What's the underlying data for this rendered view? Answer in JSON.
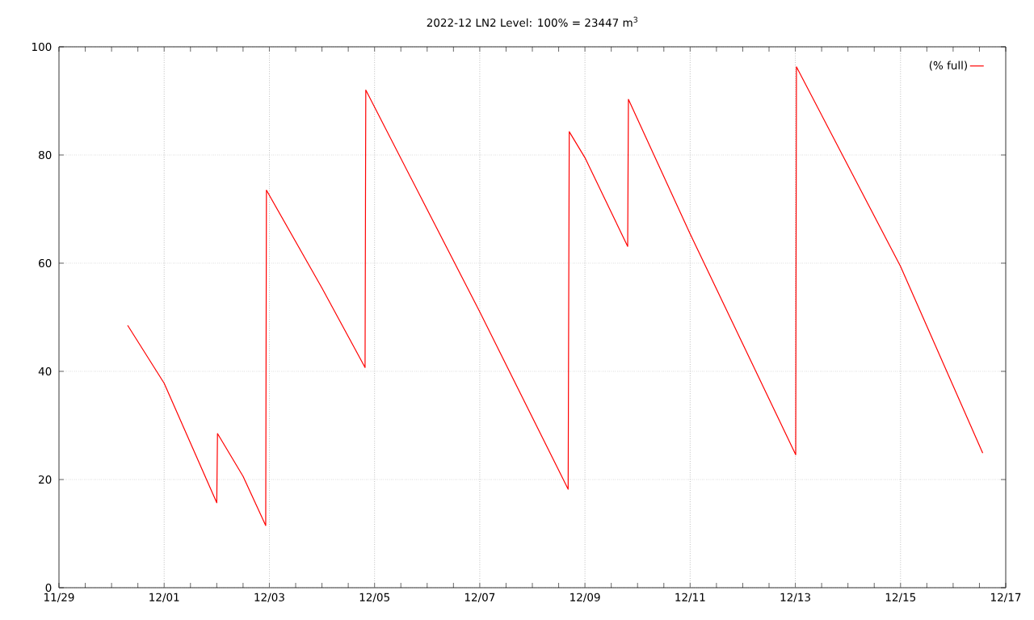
{
  "chart_data": {
    "type": "line",
    "title": "2022-12 LN2 Level: 100% = 23447 m$^{3}$",
    "x": [
      "2022-11-30T07:20",
      "2022-12-01T00:00",
      "2022-12-02T00:00",
      "2022-12-02T00:20",
      "2022-12-02T12:00",
      "2022-12-02T22:20",
      "2022-12-02T22:40",
      "2022-12-04T00:00",
      "2022-12-04T19:40",
      "2022-12-04T20:00",
      "2022-12-07T00:00",
      "2022-12-08T16:20",
      "2022-12-08T16:50",
      "2022-12-09T00:00",
      "2022-12-09T19:30",
      "2022-12-09T19:50",
      "2022-12-11T00:00",
      "2022-12-13T00:10",
      "2022-12-13T00:30",
      "2022-12-15T00:00",
      "2022-12-16T13:30"
    ],
    "series": [
      {
        "name": "(% full)",
        "color": "#ff0000",
        "values": [
          48.5,
          37.8,
          15.7,
          28.5,
          20.6,
          11.5,
          73.5,
          55.4,
          40.7,
          92.0,
          51.0,
          18.2,
          84.3,
          79.5,
          63.1,
          90.3,
          65.4,
          24.6,
          96.3,
          59.4,
          24.9
        ]
      }
    ],
    "xlim": [
      "2022-11-29",
      "2022-12-17"
    ],
    "xticks": [
      {
        "value": "2022-11-29",
        "label": "11/29"
      },
      {
        "value": "2022-11-29T12:00",
        "label": null
      },
      {
        "value": "2022-11-30",
        "label": null
      },
      {
        "value": "2022-11-30T12:00",
        "label": null
      },
      {
        "value": "2022-12-01",
        "label": "12/01"
      },
      {
        "value": "2022-12-01T12:00",
        "label": null
      },
      {
        "value": "2022-12-02",
        "label": null
      },
      {
        "value": "2022-12-02T12:00",
        "label": null
      },
      {
        "value": "2022-12-03",
        "label": "12/03"
      },
      {
        "value": "2022-12-03T12:00",
        "label": null
      },
      {
        "value": "2022-12-04",
        "label": null
      },
      {
        "value": "2022-12-04T12:00",
        "label": null
      },
      {
        "value": "2022-12-05",
        "label": "12/05"
      },
      {
        "value": "2022-12-05T12:00",
        "label": null
      },
      {
        "value": "2022-12-06",
        "label": null
      },
      {
        "value": "2022-12-06T12:00",
        "label": null
      },
      {
        "value": "2022-12-07",
        "label": "12/07"
      },
      {
        "value": "2022-12-07T12:00",
        "label": null
      },
      {
        "value": "2022-12-08",
        "label": null
      },
      {
        "value": "2022-12-08T12:00",
        "label": null
      },
      {
        "value": "2022-12-09",
        "label": "12/09"
      },
      {
        "value": "2022-12-09T12:00",
        "label": null
      },
      {
        "value": "2022-12-10",
        "label": null
      },
      {
        "value": "2022-12-10T12:00",
        "label": null
      },
      {
        "value": "2022-12-11",
        "label": "12/11"
      },
      {
        "value": "2022-12-11T12:00",
        "label": null
      },
      {
        "value": "2022-12-12",
        "label": null
      },
      {
        "value": "2022-12-12T12:00",
        "label": null
      },
      {
        "value": "2022-12-13",
        "label": "12/13"
      },
      {
        "value": "2022-12-13T12:00",
        "label": null
      },
      {
        "value": "2022-12-14",
        "label": null
      },
      {
        "value": "2022-12-14T12:00",
        "label": null
      },
      {
        "value": "2022-12-15",
        "label": "12/15"
      },
      {
        "value": "2022-12-15T12:00",
        "label": null
      },
      {
        "value": "2022-12-16",
        "label": null
      },
      {
        "value": "2022-12-16T12:00",
        "label": null
      },
      {
        "value": "2022-12-17",
        "label": "12/17"
      }
    ],
    "ylim": [
      0,
      100
    ],
    "yticks": [
      0,
      20,
      40,
      60,
      80,
      100
    ],
    "grid": true,
    "legend": "top right"
  }
}
